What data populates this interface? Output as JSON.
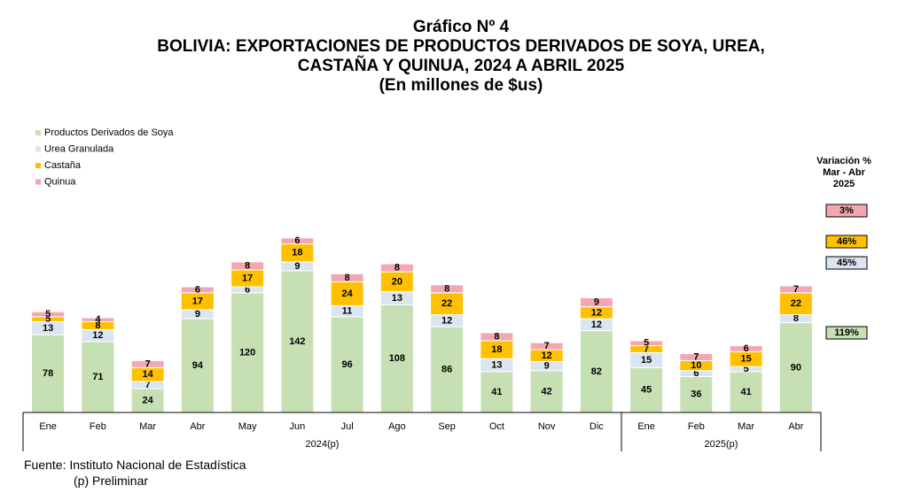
{
  "titles": {
    "line1": "Gráfico Nº 4",
    "line2": "BOLIVIA: EXPORTACIONES DE PRODUCTOS DERIVADOS DE SOYA, UREA,",
    "line3": "CASTAÑA Y QUINUA, 2024 A ABRIL 2025",
    "line4": "(En millones de $us)"
  },
  "source": {
    "line1": "Fuente: Instituto Nacional de Estadística",
    "line2": "(p) Preliminar"
  },
  "colors": {
    "soya": "#c6e0b4",
    "urea": "#dbe4f1",
    "castana": "#ffc000",
    "quinua": "#f4a7b0",
    "border": "#ffffff",
    "axis": "#000000"
  },
  "chart_data": {
    "type": "bar",
    "stacked": true,
    "title": "Gráfico Nº 4 BOLIVIA: EXPORTACIONES DE PRODUCTOS DERIVADOS DE SOYA, UREA, CASTAÑA Y QUINUA, 2024 A ABRIL 2025",
    "ylabel": "(En millones de $us)",
    "categories": [
      "Ene",
      "Feb",
      "Mar",
      "Abr",
      "May",
      "Jun",
      "Jul",
      "Ago",
      "Sep",
      "Oct",
      "Nov",
      "Dic",
      "Ene",
      "Feb",
      "Mar",
      "Abr"
    ],
    "groups": [
      {
        "label": "2024(p)",
        "count": 12
      },
      {
        "label": "2025(p)",
        "count": 4
      }
    ],
    "legend_position": "top-left",
    "series": [
      {
        "name": "Productos Derivados de Soya",
        "color_key": "soya",
        "values": [
          78,
          71,
          24,
          94,
          120,
          142,
          96,
          108,
          86,
          41,
          42,
          82,
          45,
          36,
          41,
          90
        ]
      },
      {
        "name": "Urea Granulada",
        "color_key": "urea",
        "values": [
          13,
          12,
          7,
          9,
          6,
          9,
          11,
          13,
          12,
          13,
          9,
          12,
          15,
          6,
          5,
          8
        ]
      },
      {
        "name": "Castaña",
        "color_key": "castana",
        "values": [
          5,
          8,
          14,
          17,
          17,
          18,
          24,
          20,
          22,
          18,
          12,
          12,
          7,
          10,
          15,
          22
        ]
      },
      {
        "name": "Quinua",
        "color_key": "quinua",
        "values": [
          5,
          4,
          7,
          6,
          8,
          6,
          8,
          8,
          8,
          8,
          7,
          9,
          5,
          7,
          6,
          7
        ]
      }
    ],
    "variation": {
      "title_line1": "Variación %",
      "title_line2": "Mar - Abr",
      "title_line3": "2025",
      "items": [
        {
          "series": "Quinua",
          "label": "3%",
          "color_key": "quinua"
        },
        {
          "series": "Castaña",
          "label": "46%",
          "color_key": "castana"
        },
        {
          "series": "Urea Granulada",
          "label": "45%",
          "color_key": "urea"
        },
        {
          "series": "Productos Derivados de Soya",
          "label": "119%",
          "color_key": "soya"
        }
      ]
    }
  }
}
